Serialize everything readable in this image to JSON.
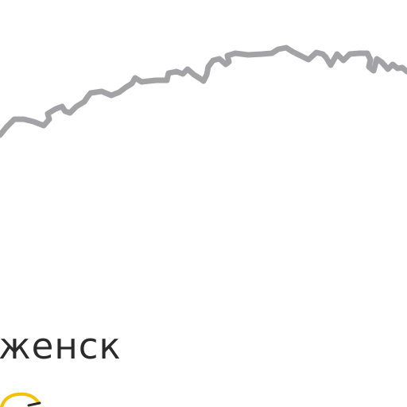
{
  "map": {
    "city_label": "дженск",
    "colors": {
      "background": "#ffffff",
      "border_line": "#a3a3a5",
      "road_marker": "#f2c200",
      "label_text": "#2b2b2b"
    },
    "icons": {
      "road_marker": "highway-shield-icon"
    }
  }
}
